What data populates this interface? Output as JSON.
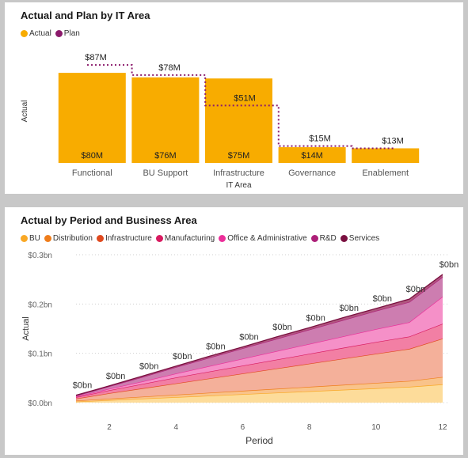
{
  "chart_data": [
    {
      "type": "bar",
      "title": "Actual and Plan by IT Area",
      "xlabel": "IT Area",
      "ylabel": "Actual",
      "categories": [
        "Functional",
        "BU Support",
        "Infrastructure",
        "Governance",
        "Enablement"
      ],
      "series": [
        {
          "name": "Actual",
          "values": [
            80,
            76,
            75,
            14,
            13
          ],
          "labels": [
            "$80M",
            "$76M",
            "$75M",
            "$14M",
            ""
          ]
        },
        {
          "name": "Plan",
          "values": [
            87,
            78,
            51,
            15,
            13
          ],
          "labels": [
            "$87M",
            "$78M",
            "$51M",
            "$15M",
            "$13M"
          ],
          "style": "dotted-step"
        }
      ],
      "ylim": [
        0,
        92
      ],
      "legend": "top-left",
      "grid": false
    },
    {
      "type": "area",
      "title": "Actual by Period and Business Area",
      "xlabel": "Period",
      "ylabel": "Actual",
      "x": [
        1,
        2,
        3,
        4,
        5,
        6,
        7,
        8,
        9,
        10,
        11,
        12
      ],
      "xticks": [
        "2",
        "4",
        "6",
        "8",
        "10",
        "12"
      ],
      "yticks": [
        "$0.0bn",
        "$0.1bn",
        "$0.2bn",
        "$0.3bn"
      ],
      "ylim": [
        0,
        0.3
      ],
      "stacked": true,
      "legend": "top-left",
      "grid": true,
      "point_label": "$0bn",
      "series": [
        {
          "name": "BU",
          "values": [
            0.002,
            0.005,
            0.008,
            0.011,
            0.014,
            0.017,
            0.02,
            0.023,
            0.026,
            0.029,
            0.032,
            0.037
          ]
        },
        {
          "name": "Distribution",
          "values": [
            0.002,
            0.003,
            0.004,
            0.005,
            0.006,
            0.007,
            0.008,
            0.009,
            0.01,
            0.011,
            0.012,
            0.015
          ]
        },
        {
          "name": "Infrastructure",
          "values": [
            0.004,
            0.011,
            0.017,
            0.023,
            0.029,
            0.035,
            0.041,
            0.047,
            0.053,
            0.059,
            0.065,
            0.078
          ]
        },
        {
          "name": "Manufacturing",
          "values": [
            0.003,
            0.006,
            0.009,
            0.012,
            0.014,
            0.016,
            0.018,
            0.02,
            0.022,
            0.024,
            0.025,
            0.03
          ]
        },
        {
          "name": "Office & Administrative",
          "values": [
            0.001,
            0.003,
            0.005,
            0.008,
            0.011,
            0.014,
            0.017,
            0.02,
            0.023,
            0.026,
            0.029,
            0.055
          ]
        },
        {
          "name": "R&D",
          "values": [
            0.002,
            0.005,
            0.009,
            0.013,
            0.017,
            0.021,
            0.025,
            0.029,
            0.033,
            0.037,
            0.041,
            0.04
          ]
        },
        {
          "name": "Services",
          "values": [
            0.001,
            0.001,
            0.002,
            0.002,
            0.003,
            0.003,
            0.004,
            0.004,
            0.005,
            0.005,
            0.006,
            0.005
          ]
        }
      ]
    }
  ],
  "colors": {
    "actual": "#f8ac00",
    "plan": "#8b1a6b",
    "BU": "#f9a825",
    "Distribution": "#ef7d1b",
    "Infrastructure": "#e04a1f",
    "Manufacturing": "#d81b60",
    "Office & Administrative": "#ec2f9a",
    "R&D": "#ad1f78",
    "Services": "#7a1040",
    "fill_BU": "#fddc9a",
    "fill_Distribution": "#f9c38a",
    "fill_Infrastructure": "#f4b09a",
    "fill_Manufacturing": "#f27fa4",
    "fill_Office & Administrative": "#f590c8",
    "fill_R&D": "#cd7db0",
    "fill_Services": "#b0577f"
  }
}
